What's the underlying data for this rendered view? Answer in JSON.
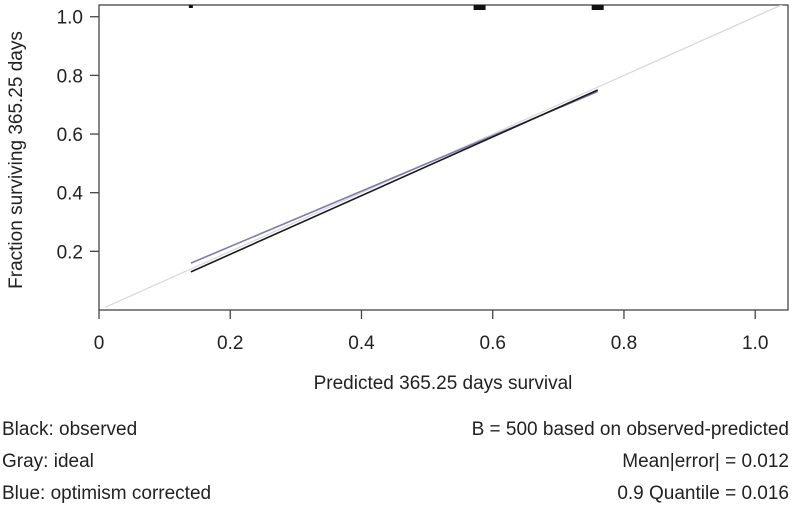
{
  "chart_data": {
    "type": "line",
    "xlabel": "Predicted 365.25 days survival",
    "ylabel": "Fraction surviving 365.25 days",
    "xlim": [
      0,
      1.05
    ],
    "ylim": [
      0,
      1.04
    ],
    "x_ticks": [
      0,
      0.2,
      0.4,
      0.6,
      0.8,
      1.0
    ],
    "x_tick_labels": [
      "0",
      "0.2",
      "0.4",
      "0.6",
      "0.8",
      "1.0"
    ],
    "y_ticks": [
      0.2,
      0.4,
      0.6,
      0.8,
      1.0
    ],
    "y_tick_labels": [
      "0.2",
      "0.4",
      "0.6",
      "0.8",
      "1.0"
    ],
    "series": [
      {
        "name": "ideal",
        "color": "#d9d9d9",
        "x": [
          0.01,
          1.05
        ],
        "y": [
          0.01,
          1.05
        ]
      },
      {
        "name": "optimism corrected",
        "color": "#7b7bb3",
        "x": [
          0.14,
          0.76
        ],
        "y": [
          0.16,
          0.745
        ]
      },
      {
        "name": "observed",
        "color": "#1a1a1a",
        "x": [
          0.14,
          0.76
        ],
        "y": [
          0.13,
          0.75
        ]
      }
    ],
    "rug_marks_top": [
      0.14,
      0.58,
      0.76
    ]
  },
  "legend": {
    "observed": "Black: observed",
    "ideal": "Gray: ideal",
    "corrected": "Blue: optimism corrected"
  },
  "stats": {
    "bootstrap": "B = 500 based on observed-predicted",
    "mean_error": "Mean|error| = 0.012",
    "quantile": "0.9 Quantile = 0.016"
  }
}
